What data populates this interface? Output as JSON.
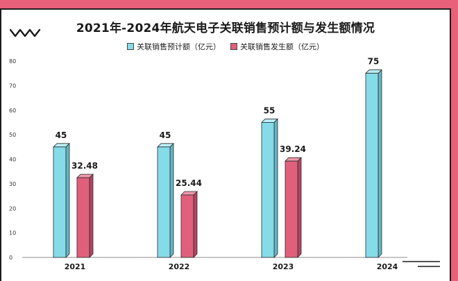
{
  "title": "2021年-2024年航天电子关联销售预计额与发生额情况",
  "legend": {
    "series1": "关联销售预计额（亿元）",
    "series2": "关联销售发生额（亿元）"
  },
  "colors": {
    "series1": "#86dbe8",
    "series2": "#e0607c",
    "background": "#e8607a"
  },
  "chart_data": {
    "type": "bar",
    "title": "2021年-2024年航天电子关联销售预计额与发生额情况",
    "categories": [
      "2021",
      "2022",
      "2023",
      "2024"
    ],
    "series": [
      {
        "name": "关联销售预计额（亿元）",
        "values": [
          45,
          45,
          55,
          75
        ],
        "labels": [
          "45",
          "45",
          "55",
          "75"
        ]
      },
      {
        "name": "关联销售发生额（亿元）",
        "values": [
          32.48,
          25.44,
          39.24,
          null
        ],
        "labels": [
          "32.48",
          "25.44",
          "39.24",
          ""
        ]
      }
    ],
    "yticks": [
      0,
      10,
      20,
      30,
      40,
      50,
      60,
      70,
      80
    ],
    "ylim": [
      0,
      80
    ],
    "xlabel": "",
    "ylabel": "",
    "legend_position": "top-center",
    "grid": false
  }
}
